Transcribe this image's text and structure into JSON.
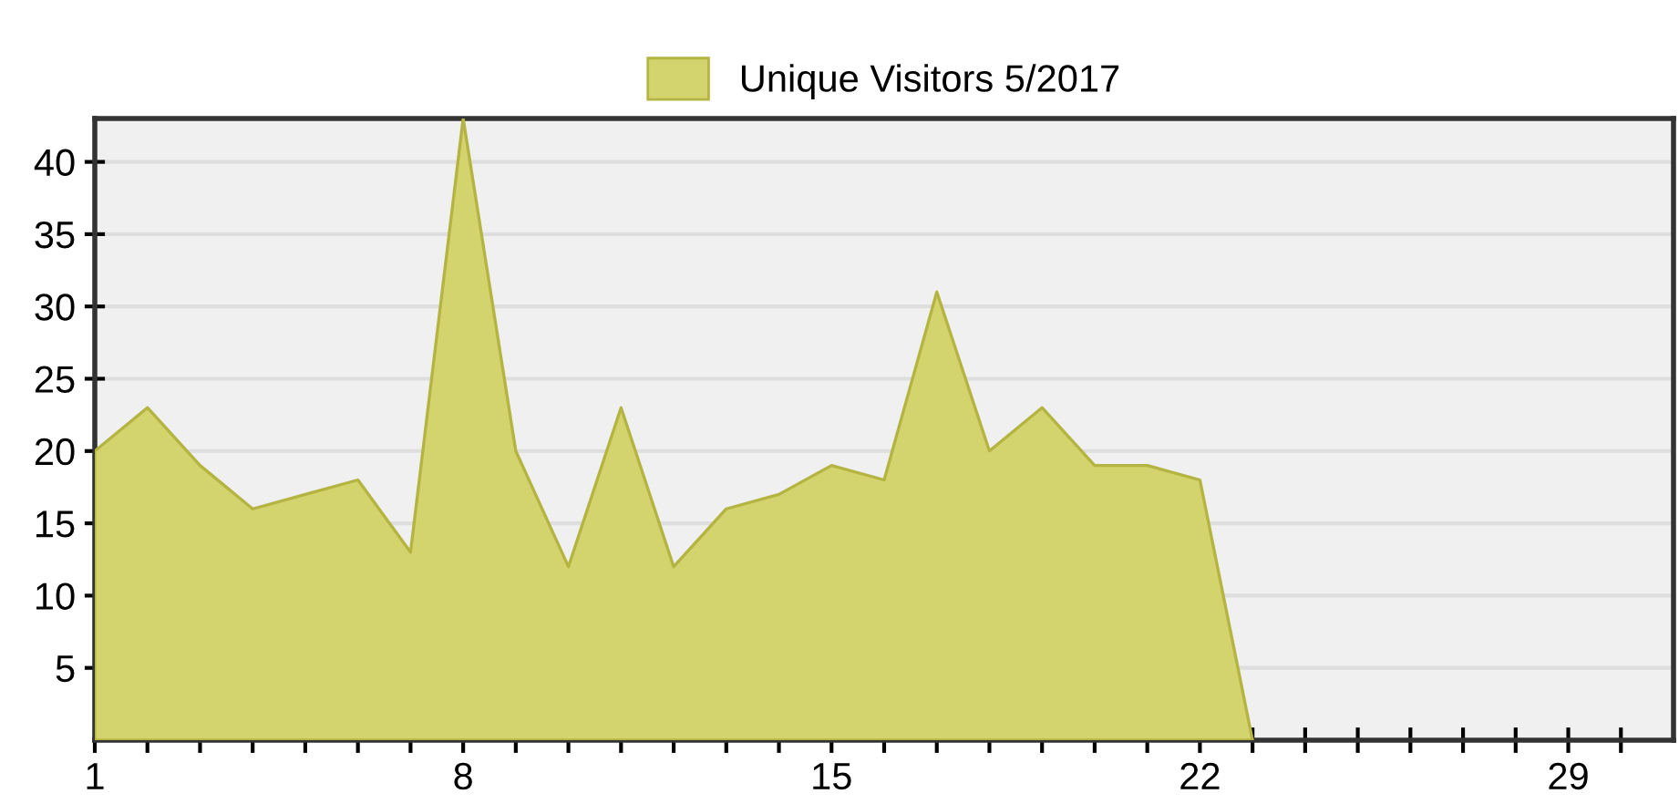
{
  "chart_data": {
    "type": "area",
    "x": [
      1,
      2,
      3,
      4,
      5,
      6,
      7,
      8,
      9,
      10,
      11,
      12,
      13,
      14,
      15,
      16,
      17,
      18,
      19,
      20,
      21,
      22,
      23
    ],
    "series": [
      {
        "name": "Unique Visitors 5/2017",
        "color": "#d4d46e",
        "values": [
          20,
          23,
          19,
          16,
          17,
          18,
          13,
          43,
          20,
          12,
          23,
          12,
          16,
          17,
          19,
          18,
          31,
          20,
          23,
          19,
          19,
          18,
          0
        ]
      }
    ],
    "xlim": [
      1,
      31
    ],
    "xticks": [
      1,
      {
        "value": 2,
        "label": null
      },
      {
        "value": 3,
        "label": null
      },
      {
        "value": 4,
        "label": null
      },
      {
        "value": 5,
        "label": null
      },
      {
        "value": 6,
        "label": null
      },
      {
        "value": 7,
        "label": null
      },
      8,
      {
        "value": 9,
        "label": null
      },
      {
        "value": 10,
        "label": null
      },
      {
        "value": 11,
        "label": null
      },
      {
        "value": 12,
        "label": null
      },
      {
        "value": 13,
        "label": null
      },
      {
        "value": 14,
        "label": null
      },
      15,
      {
        "value": 16,
        "label": null
      },
      {
        "value": 17,
        "label": null
      },
      {
        "value": 18,
        "label": null
      },
      {
        "value": 19,
        "label": null
      },
      {
        "value": 20,
        "label": null
      },
      {
        "value": 21,
        "label": null
      },
      22,
      {
        "value": 23,
        "label": null
      },
      {
        "value": 24,
        "label": null
      },
      {
        "value": 25,
        "label": null
      },
      {
        "value": 26,
        "label": null
      },
      {
        "value": 27,
        "label": null
      },
      {
        "value": 28,
        "label": null
      },
      29,
      {
        "value": 30,
        "label": null
      }
    ],
    "ylim": [
      0,
      43
    ],
    "yticks": [
      5,
      10,
      15,
      20,
      25,
      30,
      35,
      40
    ],
    "grid": "y",
    "legend": "top"
  }
}
